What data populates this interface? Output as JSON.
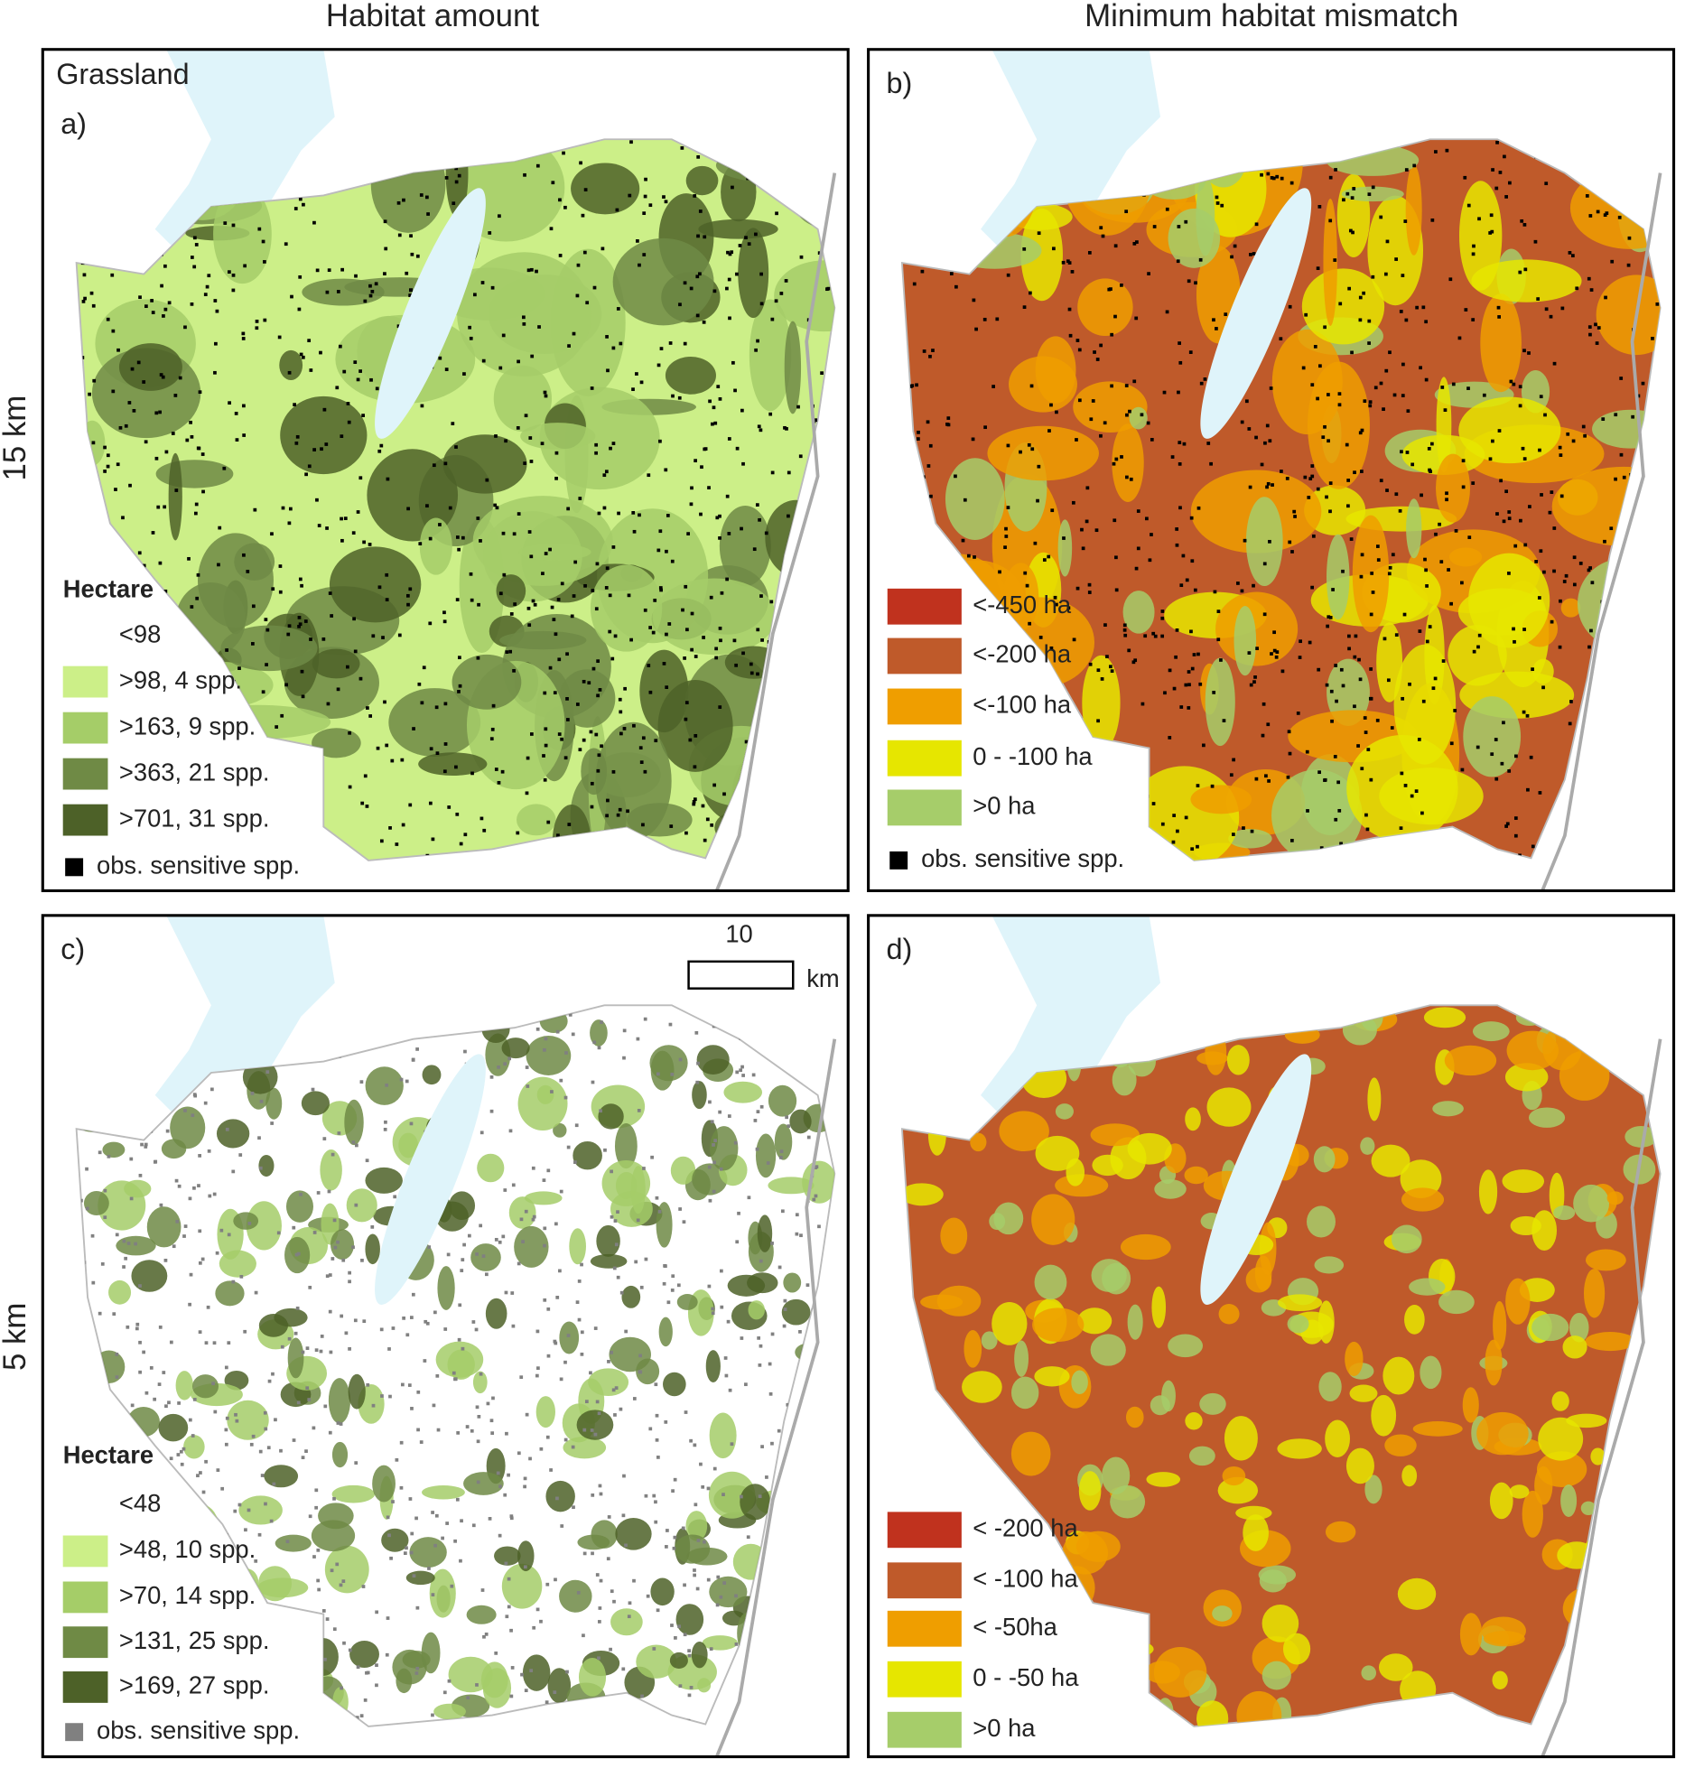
{
  "column_headers": [
    "Habitat amount",
    "Minimum habitat mismatch"
  ],
  "row_labels": [
    "15 km",
    "5 km"
  ],
  "panels": [
    {
      "label": "a)",
      "title": "Grassland",
      "legend": {
        "title": "Hectare",
        "items": [
          {
            "label": "<98"
          },
          {
            "label": ">98, 4 spp.",
            "color": "#ccef88"
          },
          {
            "label": ">163, 9 spp.",
            "color": "#a5cd68"
          },
          {
            "label": ">363, 21 spp.",
            "color": "#6f8a45"
          },
          {
            "label": ">701, 31 spp.",
            "color": "#4d6128"
          }
        ]
      },
      "observations": {
        "label": "obs. sensitive spp.",
        "color": "#000000"
      }
    },
    {
      "label": "b)",
      "legend": {
        "items": [
          {
            "label": "<-450 ha",
            "color": "#c0321e"
          },
          {
            "label": "<-200 ha",
            "color": "#bf5a2a"
          },
          {
            "label": "<-100 ha",
            "color": "#ef9e00"
          },
          {
            "label": "0 - -100 ha",
            "color": "#e6e600"
          },
          {
            "label": ">0 ha",
            "color": "#a6cd6a"
          }
        ]
      },
      "observations": {
        "label": "obs. sensitive spp.",
        "color": "#000000"
      }
    },
    {
      "label": "c)",
      "scale_bar": {
        "value": "10",
        "unit": "km"
      },
      "legend": {
        "title": "Hectare",
        "items": [
          {
            "label": "<48"
          },
          {
            "label": ">48, 10 spp.",
            "color": "#ccef88"
          },
          {
            "label": ">70, 14 spp.",
            "color": "#a5cd68"
          },
          {
            "label": ">131, 25 spp.",
            "color": "#6f8a45"
          },
          {
            "label": ">169, 27 spp.",
            "color": "#4d6128"
          }
        ]
      },
      "observations": {
        "label": "obs. sensitive spp.",
        "color": "#808080"
      }
    },
    {
      "label": "d)",
      "legend": {
        "items": [
          {
            "label": "< -200 ha",
            "color": "#c0321e"
          },
          {
            "label": "< -100 ha",
            "color": "#bf5a2a"
          },
          {
            "label": "< -50ha",
            "color": "#ef9e00"
          },
          {
            "label": "0 - -50 ha",
            "color": "#e6e600"
          },
          {
            "label": ">0 ha",
            "color": "#a6cd6a"
          }
        ]
      }
    }
  ]
}
